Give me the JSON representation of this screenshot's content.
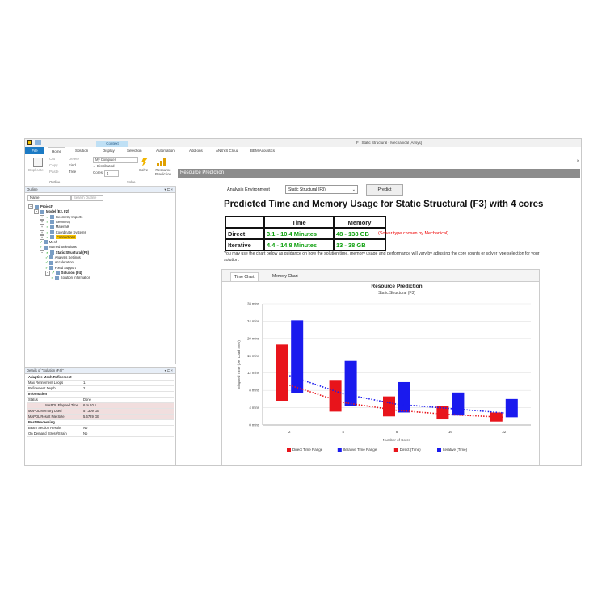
{
  "titlebar": {
    "context_tab": "Context",
    "window_title": "F : Static Structural - Mechanical [Ansys]"
  },
  "tabs": [
    "File",
    "Home",
    "Solution",
    "Display",
    "Selection",
    "Automation",
    "Add-ons",
    "ANSYS Cloud",
    "BEM Acoustics"
  ],
  "ribbon": {
    "duplicate": "Duplicate",
    "cut": "Cut",
    "copy": "Copy",
    "paste": "Paste",
    "delete": "Delete",
    "find": "Find",
    "tree": "Tree",
    "outline_group": "Outline",
    "computer": "My Computer",
    "distributed": "Distributed",
    "cores_label": "Cores",
    "cores_value": "4",
    "solve": "Solve",
    "solve_group": "Solve",
    "resource_prediction": "Resource Prediction"
  },
  "outline": {
    "title": "Outline",
    "filter_label": "Name",
    "search_placeholder": "Search Outline",
    "tree": [
      {
        "label": "Project*",
        "level": 0,
        "bold": true
      },
      {
        "label": "Model (E2, F2)",
        "level": 1,
        "bold": true
      },
      {
        "label": "Geometry Imports",
        "level": 2
      },
      {
        "label": "Geometry",
        "level": 2
      },
      {
        "label": "Materials",
        "level": 2
      },
      {
        "label": "Coordinate Systems",
        "level": 2
      },
      {
        "label": "Connections",
        "level": 2,
        "highlight": true
      },
      {
        "label": "Mesh",
        "level": 2
      },
      {
        "label": "Named Selections",
        "level": 2
      },
      {
        "label": "Static Structural (F3)",
        "level": 2,
        "bold": true
      },
      {
        "label": "Analysis Settings",
        "level": 3
      },
      {
        "label": "Acceleration",
        "level": 3
      },
      {
        "label": "Fixed Support",
        "level": 3
      },
      {
        "label": "Solution (F4)",
        "level": 3,
        "bold": true
      },
      {
        "label": "Solution Information",
        "level": 4
      }
    ]
  },
  "details": {
    "title": "Details of \"Solution (F4)\"",
    "rows": [
      {
        "k": "Adaptive Mesh Refinement",
        "v": "",
        "section": true
      },
      {
        "k": "Max Refinement Loops",
        "v": "1."
      },
      {
        "k": "Refinement Depth",
        "v": "2."
      },
      {
        "k": "Information",
        "v": "",
        "section": true
      },
      {
        "k": "Status",
        "v": "Done"
      },
      {
        "k": "MAPDL Elapsed Time",
        "v": "6 m 10 s",
        "shade": true,
        "right": true
      },
      {
        "k": "MAPDL Memory Used",
        "v": "57.309 GB",
        "shade": true
      },
      {
        "k": "MAPDL Result File Size",
        "v": "5.6729 GB",
        "shade": true
      },
      {
        "k": "Post Processing",
        "v": "",
        "section": true
      },
      {
        "k": "Beam Section Results",
        "v": "No"
      },
      {
        "k": "On Demand Stress/Strain",
        "v": "No"
      }
    ]
  },
  "resource": {
    "header": "Resource Prediction",
    "env_label": "Analysis Environment",
    "env_value": "Static Structural (F3)",
    "predict_button": "Predict",
    "title": "Predicted Time and Memory Usage for Static Structural (F3) with 4 cores",
    "table": {
      "headers": [
        "",
        "Time",
        "Memory"
      ],
      "rows": [
        [
          "Direct",
          "3.1 - 10.4 Minutes",
          "48 - 138 GB"
        ],
        [
          "Iterative",
          "4.4 - 14.8 Minutes",
          "13 - 38 GB"
        ]
      ]
    },
    "note": "(Solver type chosen by Mechanical)",
    "description": "You may use the chart below as guidance on how the solution time, memory usage and performance will vary by adjusting the core counts or solver type selection for your solution.",
    "chart_tabs": [
      "Time Chart",
      "Memory Chart"
    ]
  },
  "chart_data": {
    "type": "bar",
    "title": "Resource Prediction",
    "subtitle": "Static Structural (F3)",
    "xlabel": "Number of Cores",
    "ylabel": "Elapsed Time (per Load Step)",
    "categories": [
      "2",
      "4",
      "8",
      "16",
      "32"
    ],
    "yticks": [
      "0 mins",
      "4 mins",
      "8 mins",
      "12 mins",
      "16 mins",
      "20 mins",
      "24 mins",
      "28 mins"
    ],
    "ylim": [
      0,
      28
    ],
    "series": [
      {
        "name": "Direct Time Range",
        "color": "#e8141b",
        "ranges": [
          [
            5.6,
            18.6
          ],
          [
            3.1,
            10.4
          ],
          [
            2.0,
            6.6
          ],
          [
            1.3,
            4.3
          ],
          [
            0.8,
            2.9
          ]
        ]
      },
      {
        "name": "Iterative Time Range",
        "color": "#1a1aee",
        "ranges": [
          [
            7.4,
            24.2
          ],
          [
            4.4,
            14.8
          ],
          [
            2.9,
            9.9
          ],
          [
            2.2,
            7.5
          ],
          [
            1.8,
            6.0
          ]
        ]
      },
      {
        "name": "Direct (Time)",
        "color": "#e8141b",
        "values": [
          9.2,
          5.2,
          3.4,
          2.4,
          1.8
        ],
        "style": "dotted"
      },
      {
        "name": "Iterative (Time)",
        "color": "#1a1aee",
        "values": [
          11.4,
          7.2,
          4.8,
          3.8,
          2.8
        ],
        "style": "dotted"
      }
    ],
    "grid": true,
    "legend": "bottom"
  }
}
